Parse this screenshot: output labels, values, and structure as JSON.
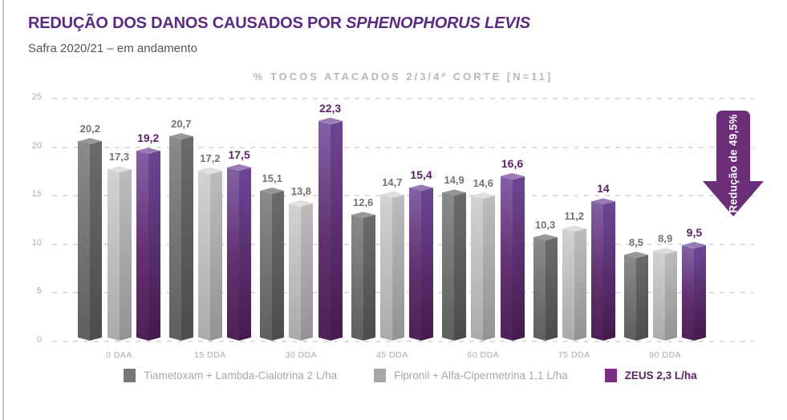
{
  "header": {
    "title_main": "REDUÇÃO DOS DANOS CAUSADOS POR ",
    "title_italic": "SPHENOPHORUS LEVIS",
    "subtitle": "Safra 2020/21 – em andamento"
  },
  "chart_data": {
    "type": "bar",
    "title": "% TOCOS ATACADOS 2/3/4º CORTE [N=11]",
    "categories": [
      "0 DAA",
      "15 DDA",
      "30 DDA",
      "45 DDA",
      "60 DDA",
      "75 DDA",
      "90 DDA"
    ],
    "series": [
      {
        "name": "Tiametoxam + Lambda-Cialotrina 2 L/ha",
        "values": [
          20.2,
          20.7,
          15.1,
          12.6,
          14.9,
          10.3,
          8.5
        ],
        "labels": [
          "20,2",
          "20,7",
          "15,1",
          "12,6",
          "14,9",
          "10,3",
          "8,5"
        ],
        "color": "#77777a"
      },
      {
        "name": "Fipronil + Alfa-Cipermetrina 1,1 L/ha",
        "values": [
          17.3,
          17.2,
          13.8,
          14.7,
          14.6,
          11.2,
          8.9
        ],
        "labels": [
          "17,3",
          "17,2",
          "13,8",
          "14,7",
          "14,6",
          "11,2",
          "8,9"
        ],
        "color": "#a7a7a9"
      },
      {
        "name": "ZEUS 2,3 L/ha",
        "values": [
          19.2,
          17.5,
          22.3,
          15.4,
          16.6,
          14,
          9.5
        ],
        "labels": [
          "19,2",
          "17,5",
          "22,3",
          "15,4",
          "16,6",
          "14",
          "9,5"
        ],
        "color": "#7c2c85"
      }
    ],
    "ylim": [
      0,
      25
    ],
    "yticks": [
      25,
      20,
      15,
      10,
      5,
      0
    ],
    "grid": "dashed-horizontal",
    "legend_position": "bottom",
    "annotation": {
      "text": "Redução de 49,5%"
    }
  },
  "colors": {
    "title_purple": "#5b2b82",
    "value_label_purple": "#5b2366",
    "value_label_gray": "#717376",
    "arrow_purple": "#6d2e79",
    "axis_text": "#a9abad",
    "gridline": "#dcdddf"
  }
}
